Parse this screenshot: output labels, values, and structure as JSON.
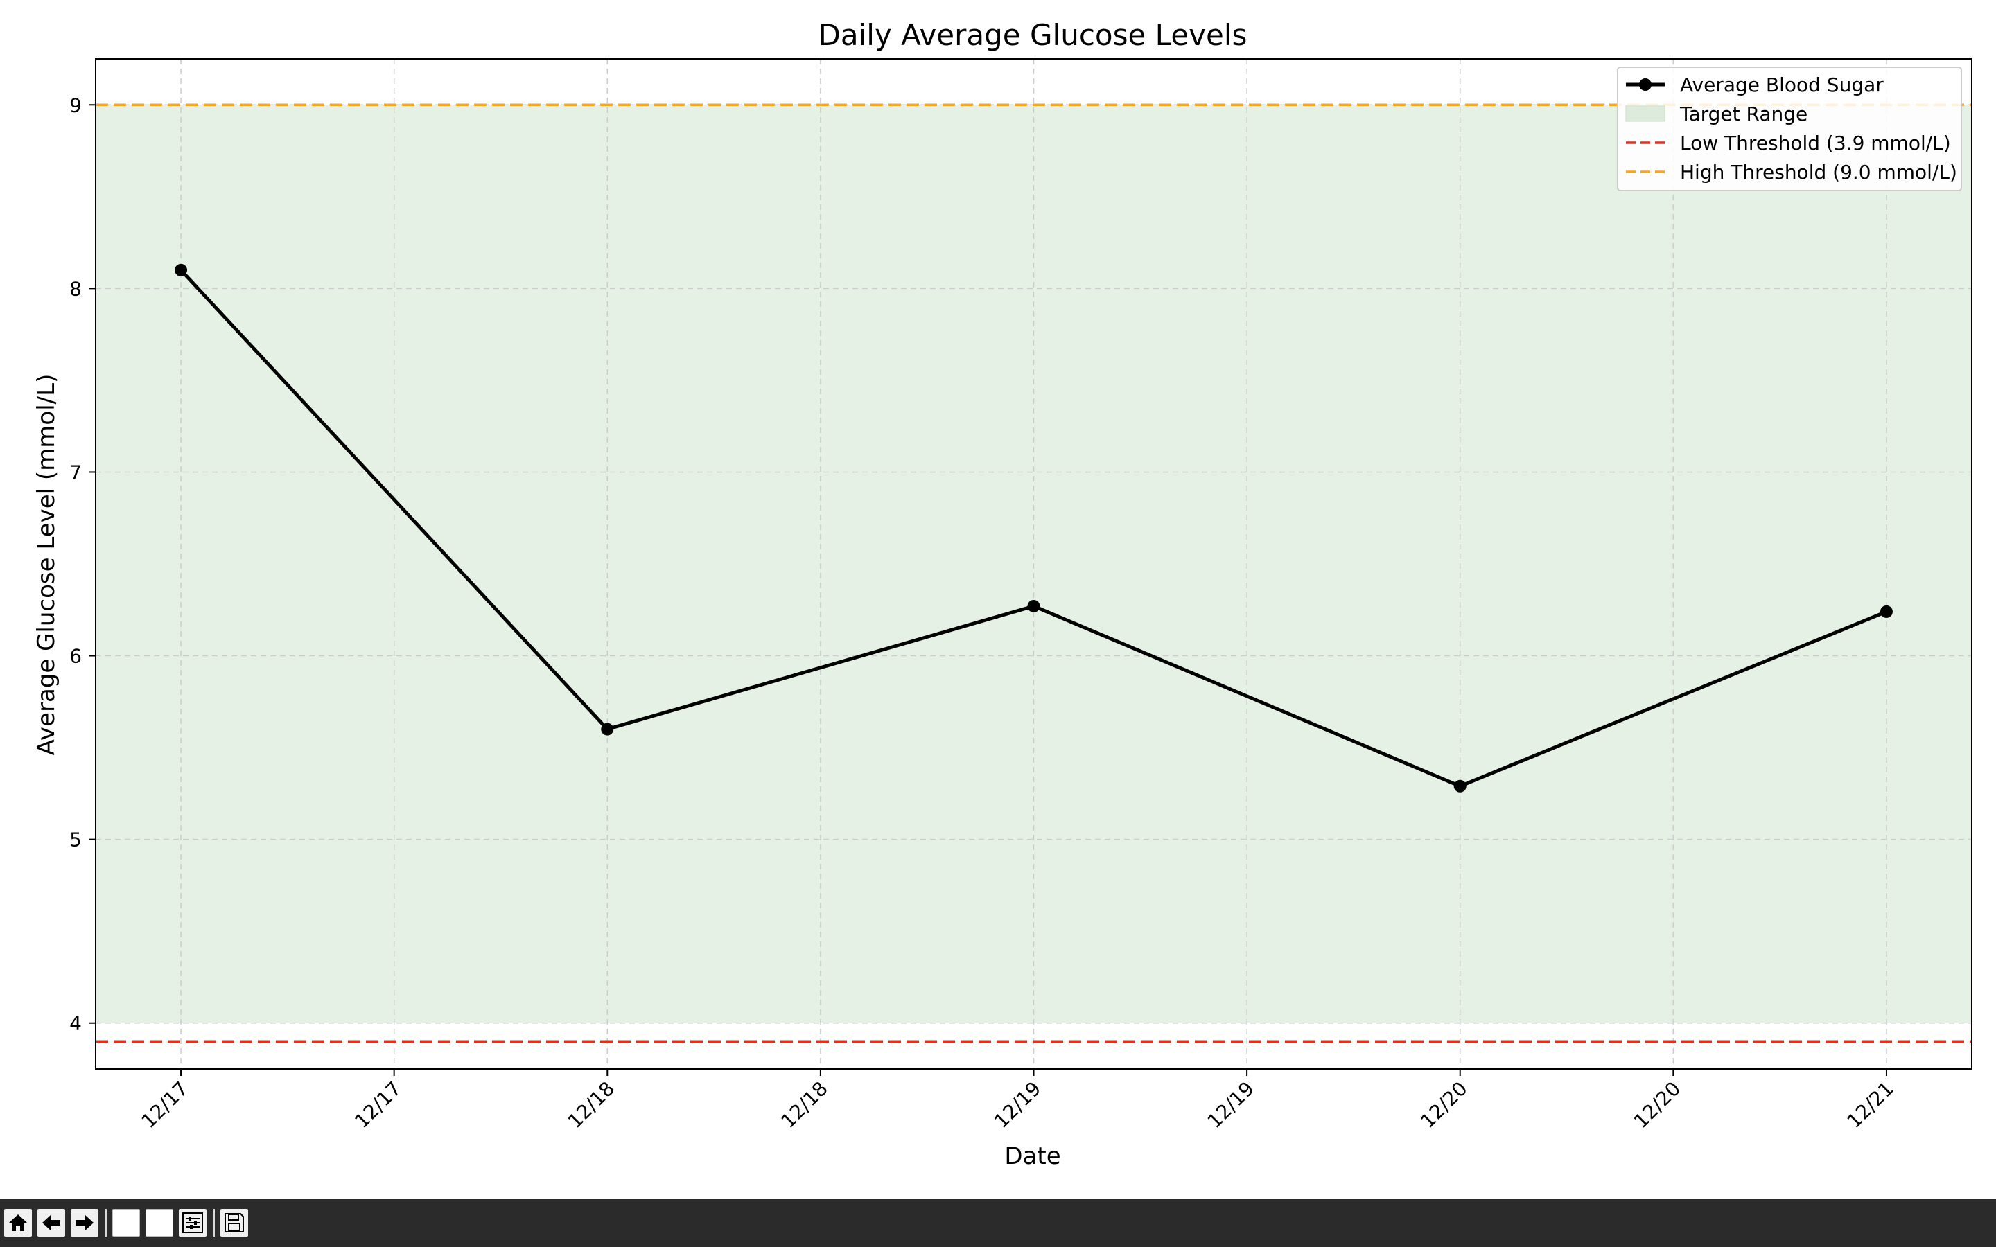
{
  "chart_data": {
    "type": "line",
    "title": "Daily Average Glucose Levels",
    "xlabel": "Date",
    "ylabel": "Average Glucose Level (mmol/L)",
    "x": [
      "12/17",
      "12/18",
      "12/19",
      "12/20",
      "12/21"
    ],
    "x_tick_labels": [
      "12/17",
      "12/17",
      "12/18",
      "12/18",
      "12/19",
      "12/19",
      "12/20",
      "12/20",
      "12/21"
    ],
    "x_tick_positions": [
      0,
      0.5,
      1,
      1.5,
      2,
      2.5,
      3,
      3.5,
      4
    ],
    "xlim": [
      -0.2,
      4.2
    ],
    "ylim": [
      3.75,
      9.25
    ],
    "y_ticks": [
      4,
      5,
      6,
      7,
      8,
      9
    ],
    "series": [
      {
        "name": "Average Blood Sugar",
        "values": [
          8.1,
          5.6,
          6.27,
          5.29,
          6.24
        ],
        "color": "#000000",
        "marker": "circle"
      }
    ],
    "target_range": {
      "name": "Target Range",
      "low": 4.0,
      "high": 9.0,
      "color": "#c8e0c8"
    },
    "thresholds": [
      {
        "name": "Low Threshold (3.9 mmol/L)",
        "value": 3.9,
        "color": "#e03020",
        "style": "dashed"
      },
      {
        "name": "High Threshold (9.0 mmol/L)",
        "value": 9.0,
        "color": "#f5a623",
        "style": "dashed"
      }
    ],
    "grid": true,
    "legend_position": "top-right"
  },
  "toolbar": {
    "buttons": [
      "home-icon",
      "back-icon",
      "forward-icon",
      "pan-icon",
      "zoom-icon",
      "configure-icon",
      "save-icon"
    ]
  }
}
